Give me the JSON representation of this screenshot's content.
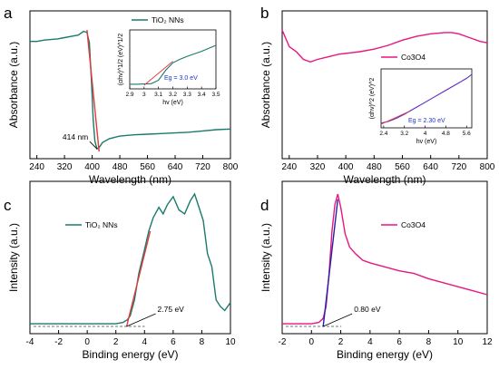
{
  "chart_data": [
    {
      "panel": "a",
      "type": "line",
      "xlabel": "Wavelength (nm)",
      "ylabel": "Absorbance (a.u.)",
      "xlim": [
        220,
        800
      ],
      "xticks": [
        240,
        320,
        400,
        480,
        560,
        640,
        720,
        800
      ],
      "ylim": [
        0,
        1
      ],
      "color": "#1a7a6c",
      "legend": "TiO₂ NNs",
      "series": [
        {
          "name": "TiO₂ NNs",
          "x": [
            220,
            240,
            260,
            280,
            300,
            320,
            340,
            360,
            375,
            385,
            392,
            398,
            403,
            408,
            414,
            420,
            430,
            450,
            480,
            520,
            560,
            600,
            640,
            680,
            720,
            760,
            800
          ],
          "y": [
            0.86,
            0.86,
            0.87,
            0.875,
            0.88,
            0.89,
            0.9,
            0.91,
            0.94,
            0.93,
            0.85,
            0.55,
            0.25,
            0.08,
            0.02,
            0.03,
            0.07,
            0.1,
            0.12,
            0.13,
            0.135,
            0.14,
            0.145,
            0.15,
            0.16,
            0.17,
            0.175
          ]
        }
      ],
      "fit_line": {
        "x": [
          385,
          420
        ],
        "y": [
          0.95,
          0.0
        ],
        "color": "#e03a3a"
      },
      "annotations": [
        {
          "text": "414 nm",
          "x": 414,
          "y": 0.02
        }
      ],
      "inset": {
        "xlabel": "hv (eV)",
        "ylabel": "(αhv)^1/2 (eV)^1/2",
        "xlim": [
          2.9,
          3.5
        ],
        "xticks": [
          2.9,
          3.0,
          3.1,
          3.2,
          3.3,
          3.4,
          3.5
        ],
        "x": [
          2.9,
          2.95,
          3.0,
          3.05,
          3.1,
          3.15,
          3.2,
          3.25,
          3.3,
          3.35,
          3.4,
          3.45,
          3.5
        ],
        "y": [
          0.02,
          0.02,
          0.025,
          0.03,
          0.1,
          0.3,
          0.45,
          0.52,
          0.58,
          0.63,
          0.68,
          0.74,
          0.8
        ],
        "fit": {
          "x": [
            3.0,
            3.2
          ],
          "y": [
            0.0,
            0.48
          ]
        },
        "eg": "Eg = 3.0 eV"
      }
    },
    {
      "panel": "b",
      "type": "line",
      "xlabel": "Wavelength (nm)",
      "ylabel": "Absorbance (a.u.)",
      "xlim": [
        220,
        800
      ],
      "xticks": [
        240,
        320,
        400,
        480,
        560,
        640,
        720,
        800
      ],
      "ylim": [
        0,
        1
      ],
      "color": "#e6177e",
      "legend": "Co3O4",
      "series": [
        {
          "name": "Co3O4",
          "x": [
            220,
            240,
            260,
            280,
            300,
            320,
            350,
            380,
            410,
            440,
            480,
            520,
            560,
            600,
            640,
            680,
            700,
            720,
            740,
            760,
            780,
            800
          ],
          "y": [
            0.95,
            0.82,
            0.78,
            0.72,
            0.7,
            0.72,
            0.74,
            0.76,
            0.77,
            0.78,
            0.8,
            0.83,
            0.87,
            0.9,
            0.92,
            0.93,
            0.93,
            0.92,
            0.9,
            0.88,
            0.86,
            0.85
          ]
        }
      ],
      "inset": {
        "xlabel": "hv (eV)",
        "ylabel": "(αhv)^2 (eV)^2",
        "xlim": [
          2.3,
          5.8
        ],
        "xticks": [
          2.4,
          3.2,
          4.0,
          4.8,
          5.6
        ],
        "x": [
          2.3,
          2.6,
          2.9,
          3.2,
          3.6,
          4.0,
          4.4,
          4.8,
          5.2,
          5.6,
          5.8
        ],
        "y": [
          0.02,
          0.06,
          0.12,
          0.2,
          0.32,
          0.44,
          0.56,
          0.68,
          0.8,
          0.92,
          1.0
        ],
        "fit": {
          "x": [
            2.3,
            3.4
          ],
          "y": [
            0.0,
            0.26
          ]
        },
        "eg": "Eg = 2.30 eV"
      }
    },
    {
      "panel": "c",
      "type": "line",
      "xlabel": "Binding energy (eV)",
      "ylabel": "Intensity (a.u.)",
      "xlim": [
        -4,
        10
      ],
      "xticks": [
        -4,
        -2,
        0,
        2,
        4,
        6,
        8,
        10
      ],
      "ylim": [
        0,
        1
      ],
      "color": "#1a7a6c",
      "legend": "TiO₂ NNs",
      "series": [
        {
          "name": "TiO₂ NNs",
          "x": [
            -4,
            -3,
            -2,
            -1,
            0,
            1,
            2,
            2.5,
            2.8,
            3.0,
            3.3,
            3.6,
            4.0,
            4.3,
            4.6,
            5.0,
            5.3,
            5.6,
            6.0,
            6.4,
            6.8,
            7.2,
            7.5,
            7.8,
            8.1,
            8.4,
            8.7,
            9.0,
            9.3,
            9.6,
            10
          ],
          "y": [
            0.02,
            0.02,
            0.02,
            0.02,
            0.02,
            0.02,
            0.02,
            0.03,
            0.05,
            0.08,
            0.2,
            0.4,
            0.58,
            0.72,
            0.82,
            0.9,
            0.85,
            0.92,
            0.98,
            0.88,
            0.85,
            0.95,
            1.0,
            0.9,
            0.8,
            0.55,
            0.45,
            0.2,
            0.15,
            0.12,
            0.18
          ]
        }
      ],
      "fit_line": {
        "x": [
          2.75,
          4.4
        ],
        "y": [
          0.0,
          0.72
        ],
        "color": "#e03a3a"
      },
      "annotations": [
        {
          "text": "2.75 eV",
          "x": 2.75,
          "y": 0.0
        }
      ]
    },
    {
      "panel": "d",
      "type": "line",
      "xlabel": "Binding energy (eV)",
      "ylabel": "Intensity (a.u.)",
      "xlim": [
        -2,
        12
      ],
      "xticks": [
        -2,
        0,
        2,
        4,
        6,
        8,
        10,
        12
      ],
      "ylim": [
        0,
        1
      ],
      "color": "#e6177e",
      "legend": "Co3O4",
      "series": [
        {
          "name": "Co3O4",
          "x": [
            -2,
            -1,
            0,
            0.5,
            0.8,
            1.0,
            1.2,
            1.4,
            1.6,
            1.8,
            2.0,
            2.3,
            2.6,
            3.0,
            3.5,
            4.0,
            5.0,
            6.0,
            7.0,
            8.0,
            9.0,
            10.0,
            11.0,
            12.0
          ],
          "y": [
            0.02,
            0.02,
            0.02,
            0.03,
            0.06,
            0.15,
            0.4,
            0.72,
            0.92,
            1.0,
            0.9,
            0.7,
            0.6,
            0.55,
            0.5,
            0.48,
            0.45,
            0.42,
            0.4,
            0.36,
            0.33,
            0.3,
            0.27,
            0.24
          ]
        }
      ],
      "fit_line": {
        "x": [
          0.8,
          1.8
        ],
        "y": [
          0.0,
          0.96
        ],
        "color": "#2a1fa8"
      },
      "annotations": [
        {
          "text": "0.80 eV",
          "x": 0.8,
          "y": 0.0
        }
      ]
    }
  ]
}
